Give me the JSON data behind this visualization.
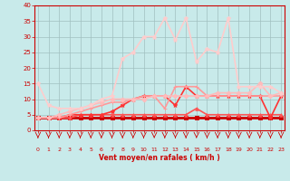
{
  "x": [
    0,
    1,
    2,
    3,
    4,
    5,
    6,
    7,
    8,
    9,
    10,
    11,
    12,
    13,
    14,
    15,
    16,
    17,
    18,
    19,
    20,
    21,
    22,
    23
  ],
  "series": [
    {
      "color": "#cc0000",
      "lw": 2.0,
      "values": [
        4,
        4,
        4,
        4,
        4,
        4,
        4,
        4,
        4,
        4,
        4,
        4,
        4,
        4,
        4,
        4,
        4,
        4,
        4,
        4,
        4,
        4,
        4,
        4
      ],
      "marker": "s",
      "ms": 2.5
    },
    {
      "color": "#ff5555",
      "lw": 1.2,
      "values": [
        4,
        4,
        4,
        4,
        5,
        5,
        5,
        5,
        5,
        5,
        5,
        5,
        5,
        5,
        5,
        7,
        5,
        5,
        5,
        5,
        5,
        5,
        5,
        5
      ],
      "marker": "^",
      "ms": 2.5
    },
    {
      "color": "#ff3333",
      "lw": 1.2,
      "values": [
        4,
        4,
        4,
        5,
        5,
        5,
        5,
        6,
        8,
        10,
        11,
        11,
        11,
        8,
        14,
        11,
        11,
        11,
        11,
        11,
        11,
        11,
        4,
        11
      ],
      "marker": "*",
      "ms": 3.5
    },
    {
      "color": "#ff9999",
      "lw": 1.2,
      "values": [
        4,
        4,
        4,
        5,
        6,
        7,
        8,
        9,
        9,
        10,
        11,
        11,
        7,
        14,
        14,
        14,
        11,
        11,
        11,
        11,
        11,
        11,
        11,
        11
      ],
      "marker": "+",
      "ms": 3.5
    },
    {
      "color": "#ffbbbb",
      "lw": 1.2,
      "values": [
        4,
        4,
        5,
        6,
        7,
        8,
        9,
        10,
        10,
        10,
        10,
        11,
        11,
        11,
        11,
        11,
        11,
        12,
        12,
        12,
        12,
        15,
        11,
        12
      ],
      "marker": "D",
      "ms": 2.5
    },
    {
      "color": "#ffcccc",
      "lw": 1.2,
      "values": [
        15,
        8,
        7,
        7,
        7,
        8,
        10,
        11,
        23,
        25,
        30,
        30,
        36,
        29,
        36,
        22,
        26,
        25,
        36,
        14,
        14,
        14,
        14,
        12
      ],
      "marker": "*",
      "ms": 3.5
    }
  ],
  "xlim": [
    -0.3,
    23.3
  ],
  "ylim": [
    0,
    40
  ],
  "yticks": [
    0,
    5,
    10,
    15,
    20,
    25,
    30,
    35,
    40
  ],
  "xticks": [
    0,
    1,
    2,
    3,
    4,
    5,
    6,
    7,
    8,
    9,
    10,
    11,
    12,
    13,
    14,
    15,
    16,
    17,
    18,
    19,
    20,
    21,
    22,
    23
  ],
  "xlabel": "Vent moyen/en rafales ( km/h )",
  "bg_color": "#c8eaea",
  "grid_color": "#a0c0c0",
  "tick_color": "#cc0000",
  "label_color": "#cc0000",
  "spine_color": "#cc0000"
}
